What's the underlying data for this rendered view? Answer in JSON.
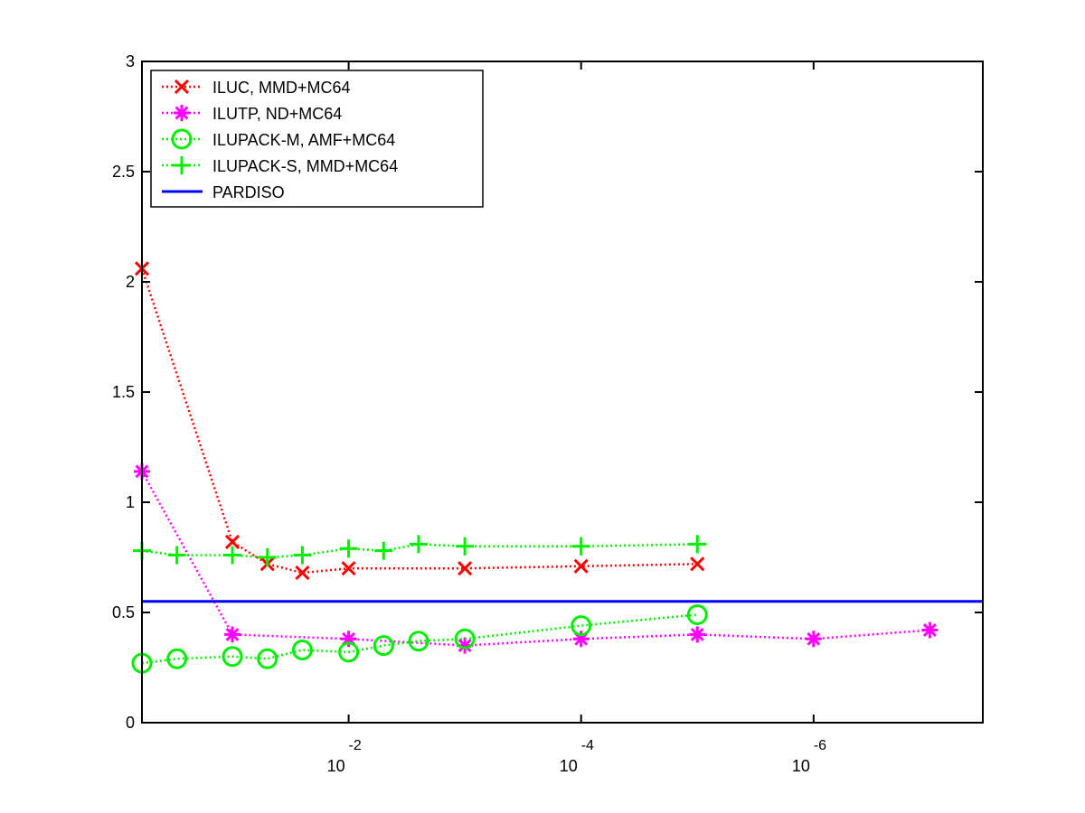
{
  "chart_data": {
    "type": "line",
    "title": "",
    "xlabel": "",
    "ylabel": "",
    "x_scale": "log-reversed",
    "xlim": [
      0.6,
      3.5e-08
    ],
    "ylim": [
      0,
      3
    ],
    "y_ticks": [
      {
        "value": 0,
        "label": "0"
      },
      {
        "value": 0.5,
        "label": "0.5"
      },
      {
        "value": 1,
        "label": "1"
      },
      {
        "value": 1.5,
        "label": "1.5"
      },
      {
        "value": 2,
        "label": "2"
      },
      {
        "value": 2.5,
        "label": "2.5"
      },
      {
        "value": 3,
        "label": "3"
      }
    ],
    "x_ticks": [
      {
        "value": 0.01,
        "base": "10",
        "exponent": "-2"
      },
      {
        "value": 0.0001,
        "base": "10",
        "exponent": "-4"
      },
      {
        "value": 1e-06,
        "base": "10",
        "exponent": "-6"
      }
    ],
    "grid": false,
    "legend_position": "top-left",
    "series": [
      {
        "name": "ILUC, MMD+MC64",
        "color": "#ff0000",
        "marker": "x",
        "line_style": "dotted",
        "x": [
          0.6,
          0.1,
          0.05,
          0.025,
          0.01,
          0.001,
          0.0001,
          1e-05
        ],
        "y": [
          2.06,
          0.82,
          0.72,
          0.68,
          0.7,
          0.7,
          0.71,
          0.72
        ]
      },
      {
        "name": "ILUTP,  ND+MC64",
        "color": "#ff00ff",
        "marker": "asterisk",
        "line_style": "dotted",
        "x": [
          0.6,
          0.1,
          0.01,
          0.001,
          0.0001,
          1e-05,
          1e-06,
          1e-07
        ],
        "y": [
          1.14,
          0.4,
          0.38,
          0.35,
          0.38,
          0.4,
          0.38,
          0.42
        ]
      },
      {
        "name": "ILUPACK-M, AMF+MC64",
        "color": "#00ee00",
        "marker": "circle",
        "line_style": "dotted",
        "x": [
          0.6,
          0.3,
          0.1,
          0.05,
          0.025,
          0.01,
          0.005,
          0.0025,
          0.001,
          0.0001,
          1e-05
        ],
        "y": [
          0.27,
          0.29,
          0.3,
          0.29,
          0.33,
          0.32,
          0.35,
          0.37,
          0.38,
          0.44,
          0.49
        ]
      },
      {
        "name": "ILUPACK-S, MMD+MC64",
        "color": "#00ee00",
        "marker": "plus",
        "line_style": "dotted",
        "x": [
          0.6,
          0.3,
          0.1,
          0.05,
          0.025,
          0.01,
          0.005,
          0.0025,
          0.001,
          0.0001,
          1e-05
        ],
        "y": [
          0.78,
          0.76,
          0.76,
          0.75,
          0.76,
          0.79,
          0.78,
          0.81,
          0.8,
          0.8,
          0.81
        ]
      },
      {
        "name": "PARDISO",
        "color": "#0000ff",
        "marker": "none",
        "line_style": "solid",
        "x": [
          0.6,
          3.5e-08
        ],
        "y": [
          0.55,
          0.55
        ]
      }
    ]
  }
}
